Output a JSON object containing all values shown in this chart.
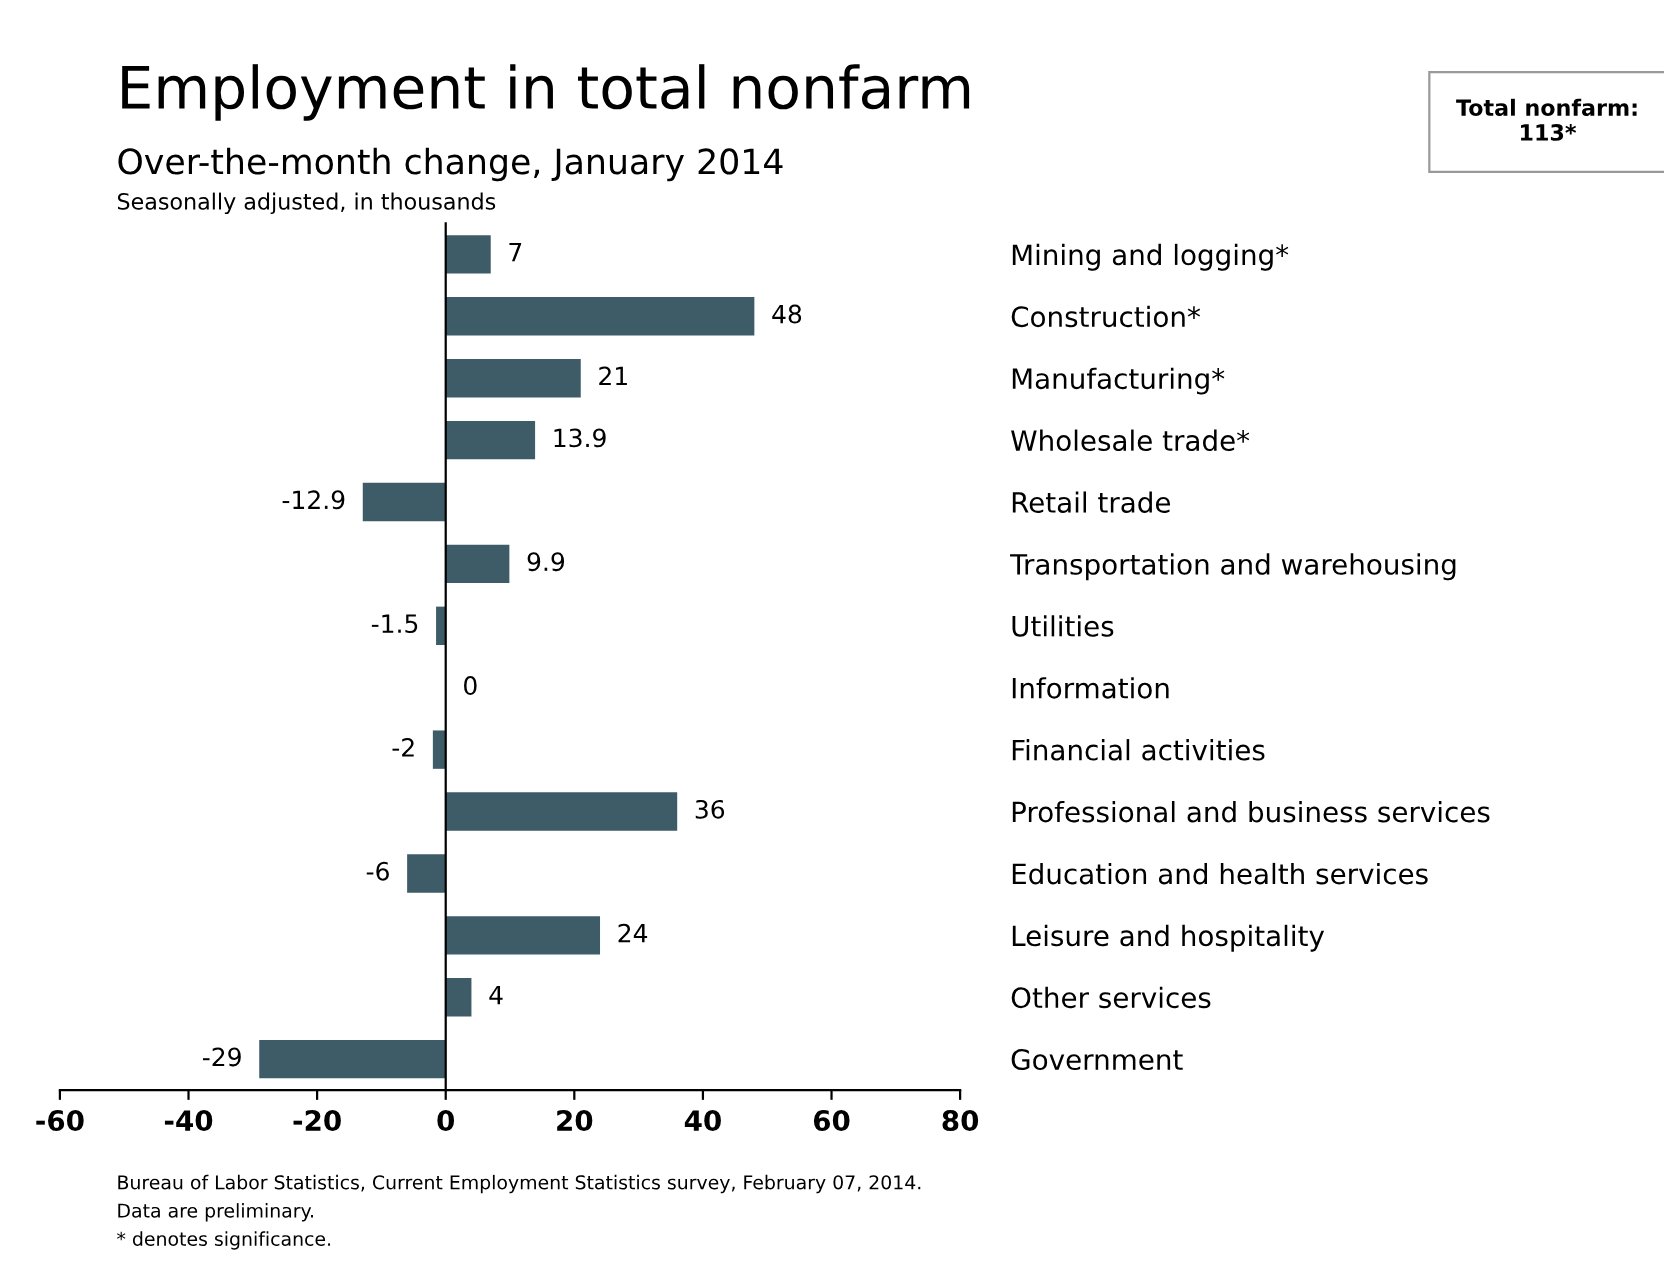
{
  "chart_data": {
    "type": "bar",
    "orientation": "horizontal",
    "title": "Employment in total nonfarm",
    "subtitle": "Over-the-month change, January 2014\nSeasonally adjusted, in thousands",
    "categories": [
      "Mining and logging*",
      "Construction*",
      "Manufacturing*",
      "Wholesale trade*",
      "Retail trade",
      "Transportation and warehousing",
      "Utilities",
      "Information",
      "Financial activities",
      "Professional and business services",
      "Education and health services",
      "Leisure and hospitality",
      "Other services",
      "Government"
    ],
    "values": [
      7,
      48,
      21,
      13.9,
      -12.9,
      9.9,
      -1.5,
      0,
      -2,
      36,
      -6,
      24,
      4,
      -29
    ],
    "color": "#3e5b68",
    "xlim": [
      -60,
      80
    ],
    "xticks": [
      -60,
      -40,
      -20,
      0,
      20,
      40,
      60,
      80
    ],
    "data_labels": true,
    "annotations": [
      "Total nonfarm:\n113*",
      "Bureau of Labor Statistics, Current Employment Statistics survey, February 07, 2014.",
      "Data are preliminary.",
      "* denotes significance."
    ]
  }
}
